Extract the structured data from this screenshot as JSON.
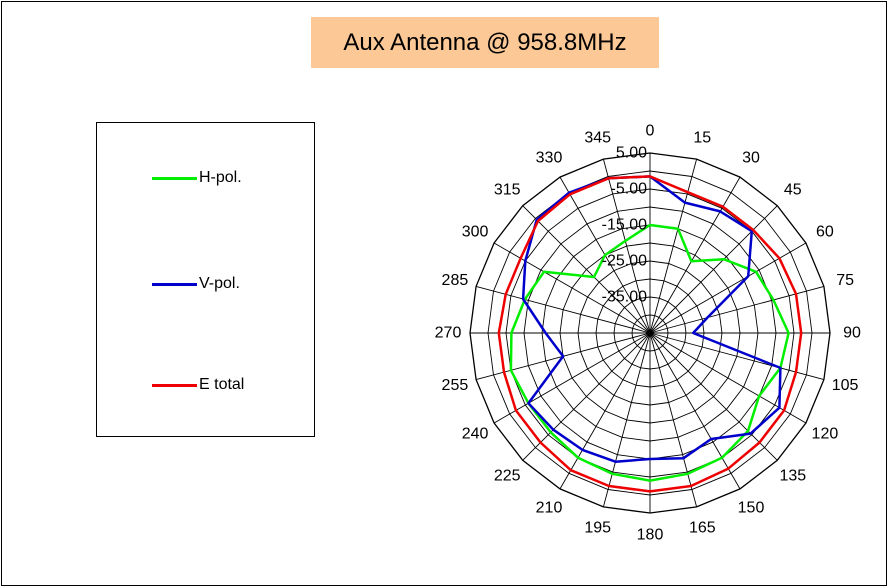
{
  "chart_data": {
    "type": "line",
    "subtype": "polar",
    "title": "Aux Antenna @ 958.8MHz",
    "angles": [
      0,
      15,
      30,
      45,
      60,
      75,
      90,
      105,
      120,
      135,
      150,
      165,
      180,
      195,
      210,
      225,
      240,
      255,
      270,
      285,
      300,
      315,
      330,
      345
    ],
    "radial_ticks": [
      5,
      -5,
      -15,
      -25,
      -35
    ],
    "radial_tick_labels": [
      "5.00",
      "-5.00",
      "-15.00",
      "-25.00",
      "-35.00"
    ],
    "radial_range": [
      -45,
      5
    ],
    "grid": true,
    "legend_position": "left",
    "series": [
      {
        "name": "H-pol.",
        "color": "#00ee00",
        "values": [
          -15,
          -15,
          -22,
          -16,
          -11,
          -9.5,
          -6.5,
          -7.5,
          -10,
          -6.5,
          -5,
          -4.5,
          -4,
          -4.5,
          -5,
          -6,
          -6,
          -5,
          -6.5,
          -9,
          -11,
          -23,
          -20,
          -18.5
        ]
      },
      {
        "name": "V-pol.",
        "color": "#0000cc",
        "values": [
          -1.5,
          -7.5,
          -6,
          -5,
          -13.5,
          -28.5,
          -33,
          -7.5,
          -3.5,
          -5.5,
          -11,
          -9,
          -10,
          -8,
          -7.5,
          -7,
          -6,
          -20,
          -16,
          -8.5,
          -5,
          -0.5,
          0,
          -0.5
        ]
      },
      {
        "name": "E total",
        "color": "#ee0000",
        "values": [
          -1.5,
          -4.5,
          -4.5,
          -4.5,
          -3.5,
          -3,
          -3,
          -3,
          -2,
          -2,
          -1.5,
          -1,
          -1,
          -1,
          -1,
          -2,
          -2,
          -3,
          -3,
          -3.5,
          -3.5,
          -1,
          -0.5,
          -0.5
        ]
      }
    ]
  }
}
